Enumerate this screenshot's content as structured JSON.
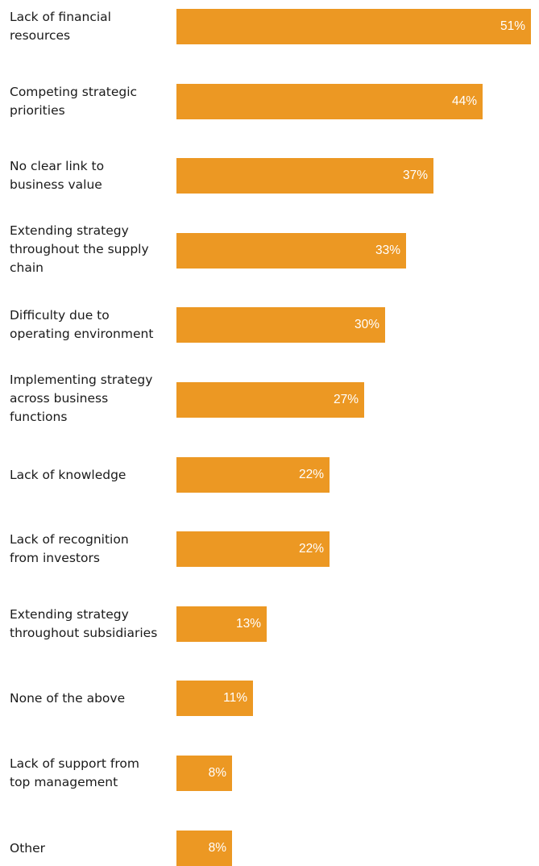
{
  "chart_data": {
    "type": "bar",
    "orientation": "horizontal",
    "categories": [
      "Lack of financial\nresources",
      "Competing strategic\npriorities",
      "No clear link to\nbusiness value",
      "Extending strategy\nthroughout the supply\nchain",
      "Difficulty due to\noperating environment",
      "Implementing strategy\nacross business\nfunctions",
      "Lack of knowledge",
      "Lack of recognition\nfrom investors",
      "Extending strategy\nthroughout subsidiaries",
      "None of the above",
      "Lack of support from\ntop management",
      "Other"
    ],
    "values": [
      51,
      44,
      37,
      33,
      30,
      27,
      22,
      22,
      13,
      11,
      8,
      8
    ],
    "value_labels": [
      "51%",
      "44%",
      "37%",
      "33%",
      "30%",
      "27%",
      "22%",
      "22%",
      "13%",
      "11%",
      "8%",
      "8%"
    ],
    "xlim": [
      0,
      51
    ],
    "grid": false,
    "legend": "none",
    "bar_color": "#ec9823",
    "value_label_color": "#ffffff",
    "label_color": "#1a1a1a"
  }
}
